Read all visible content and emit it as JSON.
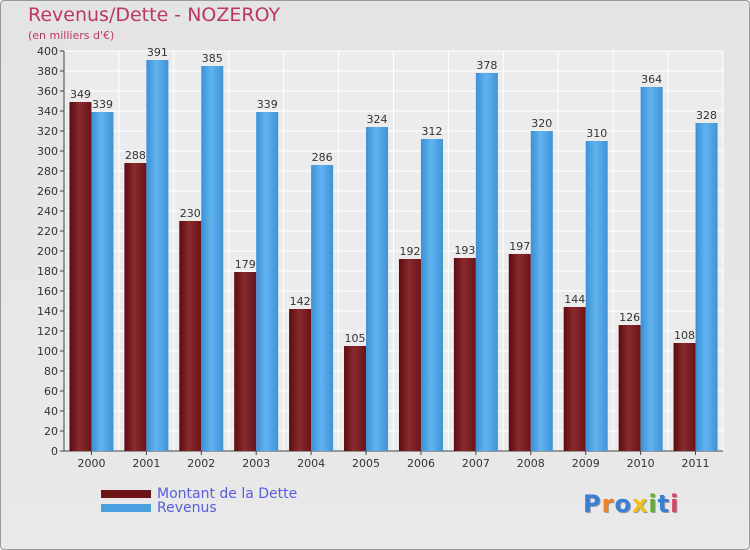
{
  "title": "Revenus/Dette - NOZEROY",
  "subtitle": "(en milliers d'€)",
  "legend": {
    "dette": "Montant de la Dette",
    "revenus": "Revenus"
  },
  "logo": {
    "letters": [
      "P",
      "r",
      "o",
      "x",
      "i",
      "t",
      "i"
    ],
    "colors": [
      "#3a7fd6",
      "#f08020",
      "#3a7fd6",
      "#f0c020",
      "#60b030",
      "#3a7fd6",
      "#e04060"
    ]
  },
  "colors": {
    "dette": "#7a1f22",
    "revenus": "#4a9fe0"
  },
  "chart_data": {
    "type": "bar",
    "title": "Revenus/Dette - NOZEROY",
    "ylabel": "(en milliers d'€)",
    "categories": [
      "2000",
      "2001",
      "2002",
      "2003",
      "2004",
      "2005",
      "2006",
      "2007",
      "2008",
      "2009",
      "2010",
      "2011"
    ],
    "series": [
      {
        "name": "Montant de la Dette",
        "values": [
          349,
          288,
          230,
          179,
          142,
          105,
          192,
          193,
          197,
          144,
          126,
          108
        ]
      },
      {
        "name": "Revenus",
        "values": [
          339,
          391,
          385,
          339,
          286,
          324,
          312,
          378,
          320,
          310,
          364,
          328
        ]
      }
    ],
    "ylim": [
      0,
      400
    ],
    "ytick_step": 20,
    "grid": true,
    "legend_position": "bottom-left"
  }
}
